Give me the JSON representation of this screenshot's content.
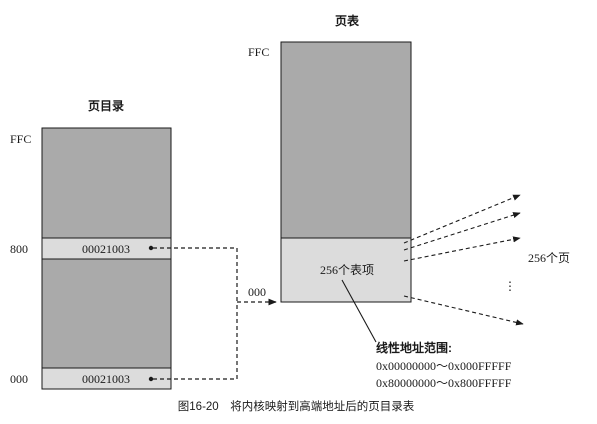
{
  "page_directory": {
    "title": "页目录",
    "label_top": "FFC",
    "label_mid": "800",
    "label_bottom": "000",
    "entry_mid": "00021003",
    "entry_bottom": "00021003"
  },
  "page_table": {
    "title": "页表",
    "label_top": "FFC",
    "label_bottom": "000",
    "entries_label": "256个表项"
  },
  "pages_label": "256个页",
  "ellipsis": "⋮",
  "range": {
    "title": "线性地址范围:",
    "line1": "0x00000000～0x000FFFFF",
    "line2": "0x80000000～0x800FFFFF"
  },
  "caption": "图16-20　将内核映射到高端地址后的页目录表",
  "colors": {
    "table_fill": "#aaaaaa",
    "entry_fill": "#dcdcdc",
    "line": "#1a1a1a"
  }
}
